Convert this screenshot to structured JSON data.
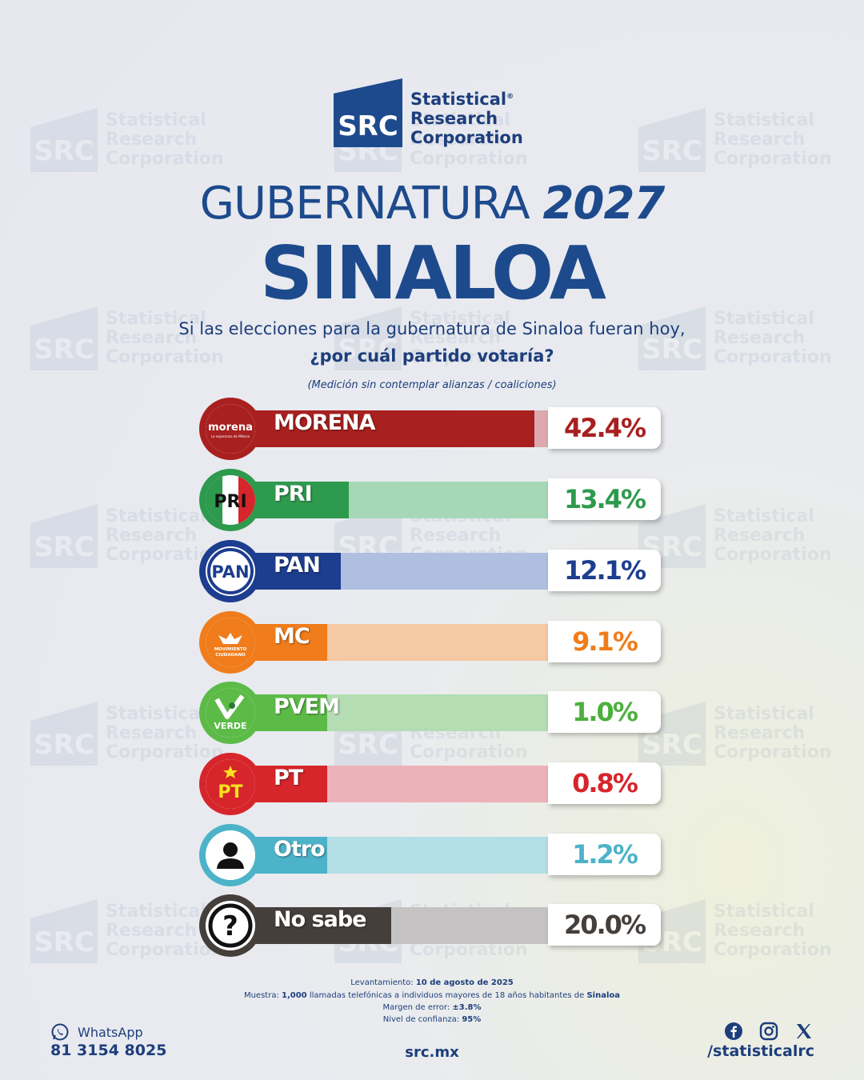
{
  "brand": {
    "box": "SRC",
    "line1": "Statistical",
    "line2": "Research",
    "line3": "Corporation",
    "reg": "®",
    "color": "#1d4a8c"
  },
  "title": {
    "line1": "GUBERNATURA",
    "year": "2027",
    "line2": "SINALOA"
  },
  "question": {
    "line1": "Si las elecciones para la gubernatura de Sinaloa fueran hoy,",
    "line2": "¿por cuál partido votaría?",
    "note": "(Medición sin contemplar alianzas / coaliciones)"
  },
  "chart_data": {
    "type": "bar",
    "categories": [
      "MORENA",
      "PRI",
      "PAN",
      "MC",
      "PVEM",
      "PT",
      "Otro",
      "No sabe"
    ],
    "values": [
      42.4,
      13.4,
      12.1,
      9.1,
      1.0,
      0.8,
      1.2,
      20.0
    ],
    "labels": [
      "42.4%",
      "13.4%",
      "12.1%",
      "9.1%",
      "1.0%",
      "0.8%",
      "1.2%",
      "20.0%"
    ],
    "ylim": [
      0,
      100
    ],
    "colors": [
      "#a8201f",
      "#2e9a4e",
      "#1d3d8f",
      "#f07c1b",
      "#5cbb47",
      "#d6252b",
      "#4cb3c9",
      "#453f3c"
    ],
    "track_colors": [
      "#dcaaae",
      "#a6d8b8",
      "#b0bfe0",
      "#f5c9a4",
      "#b4ddb3",
      "#ebb2b8",
      "#b4dfe6",
      "#c4c2c2"
    ],
    "pct_colors": [
      "#a8201f",
      "#2e9a4e",
      "#1d3d8f",
      "#f07c1b",
      "#4caf3d",
      "#d6252b",
      "#4cb3c9",
      "#453f3c"
    ],
    "icons": [
      "morena-logo-icon",
      "pri-logo-icon",
      "pan-logo-icon",
      "mc-logo-icon",
      "pvem-logo-icon",
      "pt-logo-icon",
      "person-icon",
      "question-mark-icon"
    ],
    "logo_text": {
      "morena": "morena",
      "morena_sub": "La esperanza de México",
      "pri": "PRI",
      "pan": "PAN",
      "mc1": "MOVIMIENTO",
      "mc2": "CIUDADANO",
      "pvem": "VERDE",
      "pt": "PT",
      "q": "?"
    }
  },
  "footer": {
    "survey_label": "Levantamiento:",
    "survey_date": "10 de agosto de 2025",
    "sample_label": "Muestra:",
    "sample_n": "1,000",
    "sample_text": "llamadas telefónicas a individuos mayores de 18 años habitantes de",
    "sample_place": "Sinaloa",
    "moe_label": "Margen de error:",
    "moe": "±3.8%",
    "conf_label": "Nivel de confianza:",
    "conf": "95%",
    "whatsapp_label": "WhatsApp",
    "whatsapp_number": "81 3154 8025",
    "site": "src.mx",
    "social_handle": "/statisticalrc",
    "social_icons": [
      "facebook-icon",
      "instagram-icon",
      "x-icon"
    ]
  }
}
